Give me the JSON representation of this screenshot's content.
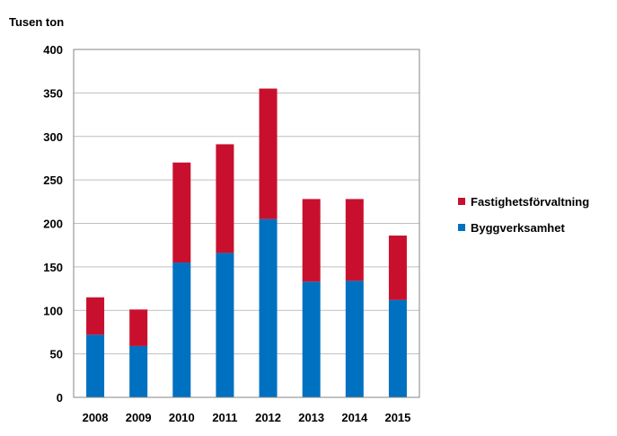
{
  "chart_data": {
    "type": "bar",
    "stacked": true,
    "ylabel": "Tusen ton",
    "ylim": [
      0,
      400
    ],
    "yticks": [
      0,
      50,
      100,
      150,
      200,
      250,
      300,
      350,
      400
    ],
    "grid": true,
    "legend_position": "right",
    "categories": [
      "2008",
      "2009",
      "2010",
      "2011",
      "2012",
      "2013",
      "2014",
      "2015"
    ],
    "series": [
      {
        "name": "Byggverksamhet",
        "color": "#0070C0",
        "values": [
          72,
          59,
          155,
          166,
          205,
          133,
          134,
          112
        ]
      },
      {
        "name": "Fastighetsförvaltning",
        "color": "#C8102E",
        "values": [
          43,
          42,
          115,
          125,
          150,
          95,
          94,
          74
        ]
      }
    ],
    "legend_order": [
      1,
      0
    ]
  }
}
